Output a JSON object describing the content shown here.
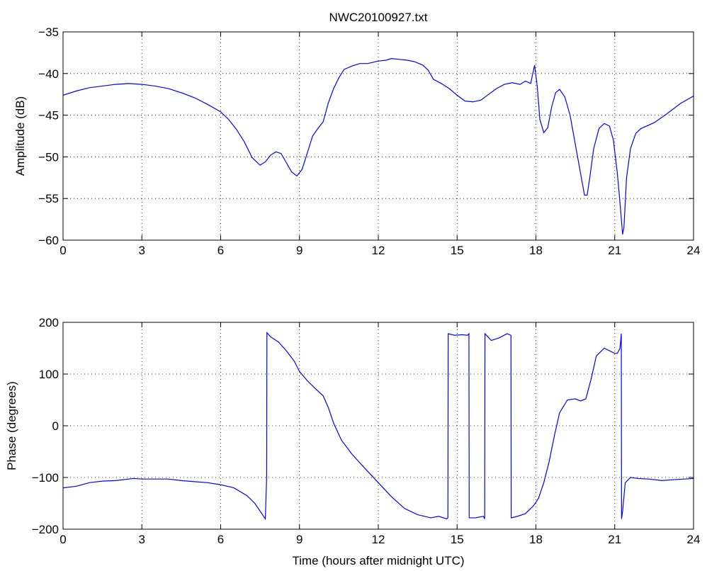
{
  "chart_data": [
    {
      "type": "line",
      "title": "NWC20100927.txt",
      "xlabel": "",
      "ylabel": "Amplitude (dB)",
      "xlim": [
        0,
        24
      ],
      "ylim": [
        -60,
        -35
      ],
      "xticks": [
        "0",
        "3",
        "6",
        "9",
        "12",
        "15",
        "18",
        "21",
        "24"
      ],
      "yticks": [
        "-35",
        "-40",
        "-45",
        "-50",
        "-55",
        "-60"
      ],
      "grid": true,
      "line_color": "#0000ff",
      "series": [
        {
          "x": [
            0,
            0.5,
            1,
            1.5,
            2,
            2.5,
            3,
            3.5,
            4,
            4.5,
            5,
            5.5,
            6,
            6.3,
            6.6,
            6.9,
            7.2,
            7.5,
            7.7,
            7.9,
            8.1,
            8.3,
            8.5,
            8.7,
            8.9,
            9.1,
            9.3,
            9.5,
            9.7,
            9.9,
            10.1,
            10.3,
            10.5,
            10.7,
            11,
            11.3,
            11.6,
            12,
            12.3,
            12.5,
            12.8,
            13.1,
            13.4,
            13.7,
            13.9,
            14.1,
            14.4,
            14.7,
            15,
            15.3,
            15.6,
            15.9,
            16.2,
            16.5,
            16.8,
            17.1,
            17.4,
            17.6,
            17.8,
            17.95,
            18.05,
            18.15,
            18.3,
            18.45,
            18.6,
            18.75,
            18.9,
            19.1,
            19.3,
            19.5,
            19.7,
            19.85,
            19.95,
            20.05,
            20.2,
            20.4,
            20.6,
            20.8,
            20.95,
            21.1,
            21.2,
            21.3,
            21.35,
            21.45,
            21.6,
            21.8,
            22,
            22.5,
            23,
            23.5,
            24
          ],
          "y": [
            -42.6,
            -42.1,
            -41.7,
            -41.5,
            -41.3,
            -41.2,
            -41.3,
            -41.5,
            -41.8,
            -42.3,
            -42.9,
            -43.7,
            -44.6,
            -45.5,
            -46.7,
            -48.2,
            -50.1,
            -51.0,
            -50.6,
            -49.8,
            -49.4,
            -49.6,
            -50.7,
            -51.8,
            -52.3,
            -51.5,
            -49.5,
            -47.5,
            -46.6,
            -45.8,
            -43.5,
            -41.8,
            -40.5,
            -39.5,
            -39.1,
            -38.8,
            -38.8,
            -38.5,
            -38.4,
            -38.2,
            -38.3,
            -38.4,
            -38.6,
            -39.0,
            -39.6,
            -40.7,
            -41.2,
            -41.8,
            -42.6,
            -43.3,
            -43.4,
            -43.2,
            -42.5,
            -41.8,
            -41.3,
            -41.1,
            -41.3,
            -40.9,
            -41.2,
            -39.0,
            -41.5,
            -45.5,
            -47.1,
            -46.5,
            -44.0,
            -42.3,
            -41.9,
            -42.8,
            -45.0,
            -48.5,
            -52.0,
            -54.6,
            -54.6,
            -52.5,
            -49.0,
            -46.6,
            -46.0,
            -46.3,
            -48.0,
            -52.0,
            -55.5,
            -59.3,
            -58.5,
            -52.5,
            -49.0,
            -47.2,
            -46.6,
            -45.9,
            -44.8,
            -43.6,
            -42.7
          ]
        }
      ]
    },
    {
      "type": "line",
      "title": "",
      "xlabel": "Time (hours after midnight UTC)",
      "ylabel": "Phase (degrees)",
      "xlim": [
        0,
        24
      ],
      "ylim": [
        -200,
        200
      ],
      "xticks": [
        "0",
        "3",
        "6",
        "9",
        "12",
        "15",
        "18",
        "21",
        "24"
      ],
      "yticks": [
        "200",
        "100",
        "0",
        "-100",
        "-200"
      ],
      "grid": true,
      "line_color": "#0000ff",
      "series": [
        {
          "x": [
            0,
            0.5,
            1,
            1.5,
            2,
            2.5,
            2.7,
            3,
            3.5,
            4,
            4.5,
            5,
            5.5,
            6,
            6.5,
            7,
            7.3,
            7.5,
            7.7,
            7.75,
            7.76,
            7.9,
            8.2,
            8.5,
            8.8,
            9,
            9.3,
            9.6,
            9.9,
            10.1,
            10.3,
            10.6,
            11,
            11.5,
            12,
            12.5,
            13,
            13.5,
            14,
            14.3,
            14.6,
            14.65,
            14.66,
            14.9,
            15.2,
            15.4,
            15.45,
            15.46,
            15.7,
            16,
            16.05,
            16.06,
            16.3,
            16.6,
            16.9,
            17.05,
            17.06,
            17.3,
            17.6,
            17.8,
            17.9,
            18.0,
            18.1,
            18.3,
            18.5,
            18.7,
            18.9,
            19.2,
            19.5,
            19.7,
            19.9,
            20.1,
            20.3,
            20.6,
            21.0,
            21.1,
            21.2,
            21.25,
            21.26,
            21.3,
            21.4,
            21.6,
            21.9,
            22.3,
            22.8,
            23.3,
            24
          ],
          "y": [
            -120,
            -117,
            -110,
            -107,
            -106,
            -103,
            -102,
            -103,
            -103,
            -103,
            -106,
            -108,
            -110,
            -114,
            -120,
            -135,
            -150,
            -165,
            -180,
            -100,
            180,
            172,
            162,
            145,
            125,
            105,
            87,
            72,
            58,
            35,
            5,
            -28,
            -55,
            -83,
            -110,
            -137,
            -160,
            -172,
            -178,
            -175,
            -180,
            -178,
            178,
            175,
            176,
            175,
            178,
            -178,
            -178,
            -175,
            -180,
            178,
            165,
            170,
            178,
            175,
            -178,
            -175,
            -170,
            -160,
            -155,
            -148,
            -140,
            -110,
            -70,
            -20,
            25,
            50,
            52,
            48,
            52,
            90,
            135,
            150,
            140,
            140,
            150,
            178,
            -180,
            -165,
            -110,
            -100,
            -102,
            -103,
            -106,
            -104,
            -102
          ]
        }
      ]
    }
  ]
}
